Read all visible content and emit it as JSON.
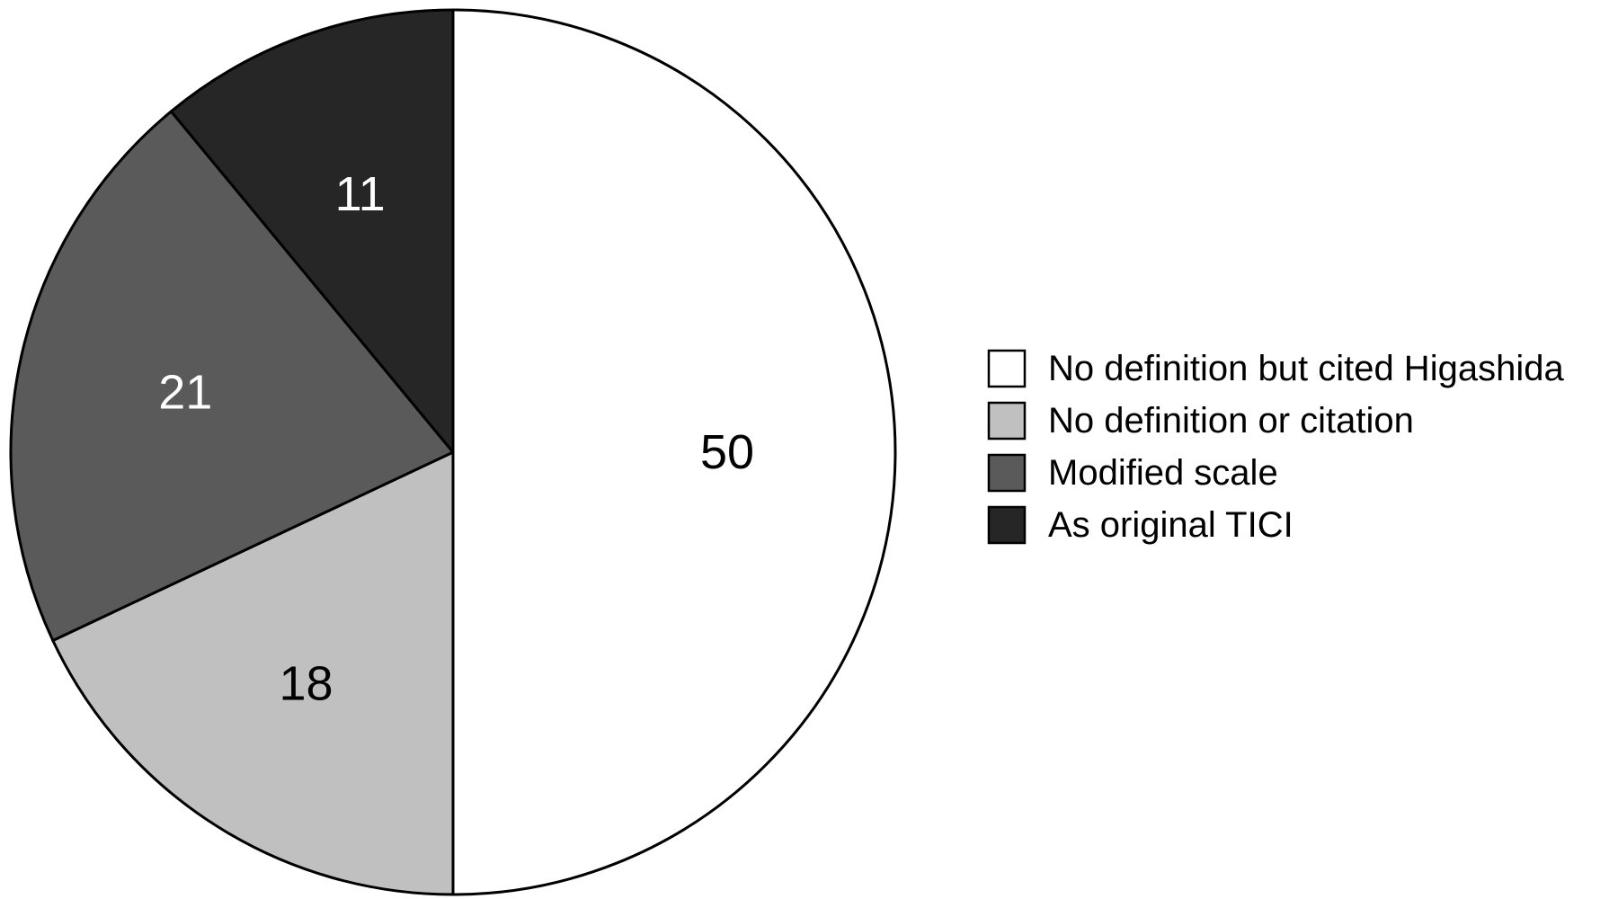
{
  "chart_data": {
    "type": "pie",
    "categories": [
      "No definition but cited Higashida",
      "No definition or citation",
      "Modified scale",
      "As original TICI"
    ],
    "values": [
      50,
      18,
      21,
      11
    ],
    "colors": [
      "#ffffff",
      "#c0c0c0",
      "#5a5a5a",
      "#262626"
    ],
    "label_colors": [
      "#000000",
      "#000000",
      "#ffffff",
      "#ffffff"
    ],
    "start": "top",
    "direction": "clockwise",
    "legend": {
      "position": "right",
      "items": [
        {
          "label": "No definition but cited Higashida",
          "color": "#ffffff"
        },
        {
          "label": "No definition or citation",
          "color": "#c0c0c0"
        },
        {
          "label": "Modified scale",
          "color": "#5a5a5a"
        },
        {
          "label": "As original TICI",
          "color": "#262626"
        }
      ]
    }
  }
}
